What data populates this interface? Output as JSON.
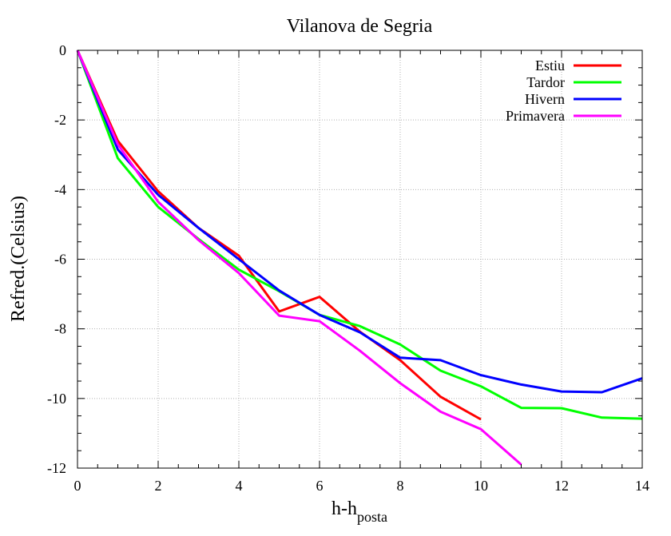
{
  "chart_data": {
    "type": "line",
    "title": "Vilanova de Segria",
    "xlabel_main": "h-h",
    "xlabel_sub": "posta",
    "ylabel": "Refred.(Celsius)",
    "xlim": [
      0,
      14
    ],
    "ylim": [
      -12,
      0
    ],
    "xticks": [
      0,
      2,
      4,
      6,
      8,
      10,
      12,
      14
    ],
    "yticks": [
      0,
      -2,
      -4,
      -6,
      -8,
      -10,
      -12
    ],
    "grid": true,
    "legend_position": "top-right",
    "series": [
      {
        "name": "Estiu",
        "color": "#ff0000",
        "x": [
          0,
          1,
          2,
          3,
          4,
          5,
          6,
          7,
          8,
          9,
          10
        ],
        "y": [
          0,
          -2.6,
          -4.05,
          -5.1,
          -5.9,
          -7.5,
          -7.08,
          -8.08,
          -8.9,
          -9.95,
          -10.6
        ]
      },
      {
        "name": "Tardor",
        "color": "#00ff00",
        "x": [
          0,
          1,
          2,
          3,
          4,
          5,
          6,
          7,
          8,
          9,
          10,
          11,
          12,
          13,
          14
        ],
        "y": [
          0,
          -3.1,
          -4.5,
          -5.42,
          -6.3,
          -6.92,
          -7.6,
          -7.92,
          -8.45,
          -9.2,
          -9.65,
          -10.27,
          -10.28,
          -10.55,
          -10.58
        ]
      },
      {
        "name": "Hivern",
        "color": "#0000ff",
        "x": [
          0,
          1,
          2,
          3,
          4,
          5,
          6,
          7,
          8,
          9,
          10,
          11,
          12,
          13,
          14
        ],
        "y": [
          0,
          -2.85,
          -4.15,
          -5.1,
          -6.0,
          -6.9,
          -7.6,
          -8.1,
          -8.83,
          -8.9,
          -9.33,
          -9.6,
          -9.8,
          -9.82,
          -9.42
        ]
      },
      {
        "name": "Primavera",
        "color": "#ff00ff",
        "x": [
          0,
          1,
          2,
          3,
          4,
          5,
          6,
          7,
          8,
          9,
          10,
          11
        ],
        "y": [
          0,
          -2.7,
          -4.35,
          -5.45,
          -6.4,
          -7.62,
          -7.78,
          -8.63,
          -9.56,
          -10.38,
          -10.88,
          -11.9
        ]
      }
    ]
  }
}
